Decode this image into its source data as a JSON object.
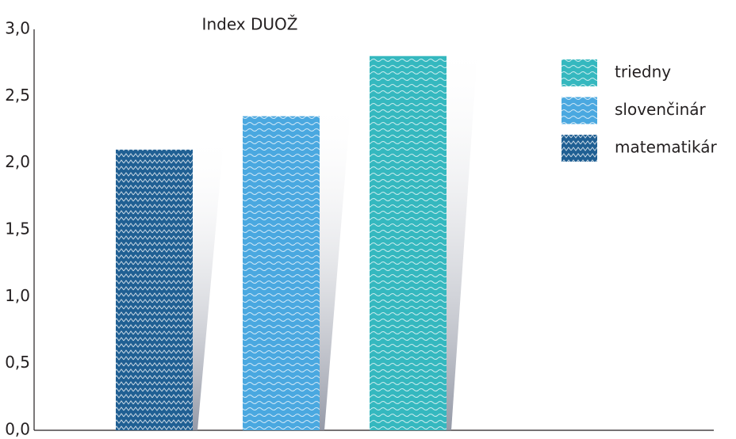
{
  "chart_data": {
    "type": "bar",
    "title": "Index DUOŽ",
    "series": [
      {
        "name": "triedny",
        "color": "#35b8bf",
        "pattern": "wave",
        "values": [
          2.8
        ]
      },
      {
        "name": "slovenčinár",
        "color": "#4aa8e0",
        "pattern": "wave",
        "values": [
          2.35
        ]
      },
      {
        "name": "matematikár",
        "color": "#1f5f93",
        "pattern": "zigzag",
        "values": [
          2.1
        ]
      }
    ],
    "ylim": [
      0,
      3
    ],
    "yticks": [
      {
        "value": 0,
        "label": "0,0"
      },
      {
        "value": 0.5,
        "label": "0,5"
      },
      {
        "value": 1,
        "label": "1,0"
      },
      {
        "value": 1.5,
        "label": "1,5"
      },
      {
        "value": 2,
        "label": "2,0"
      },
      {
        "value": 2.5,
        "label": "2,5"
      },
      {
        "value": 3,
        "label": "3,0"
      }
    ],
    "grid": false,
    "legend": "right"
  }
}
